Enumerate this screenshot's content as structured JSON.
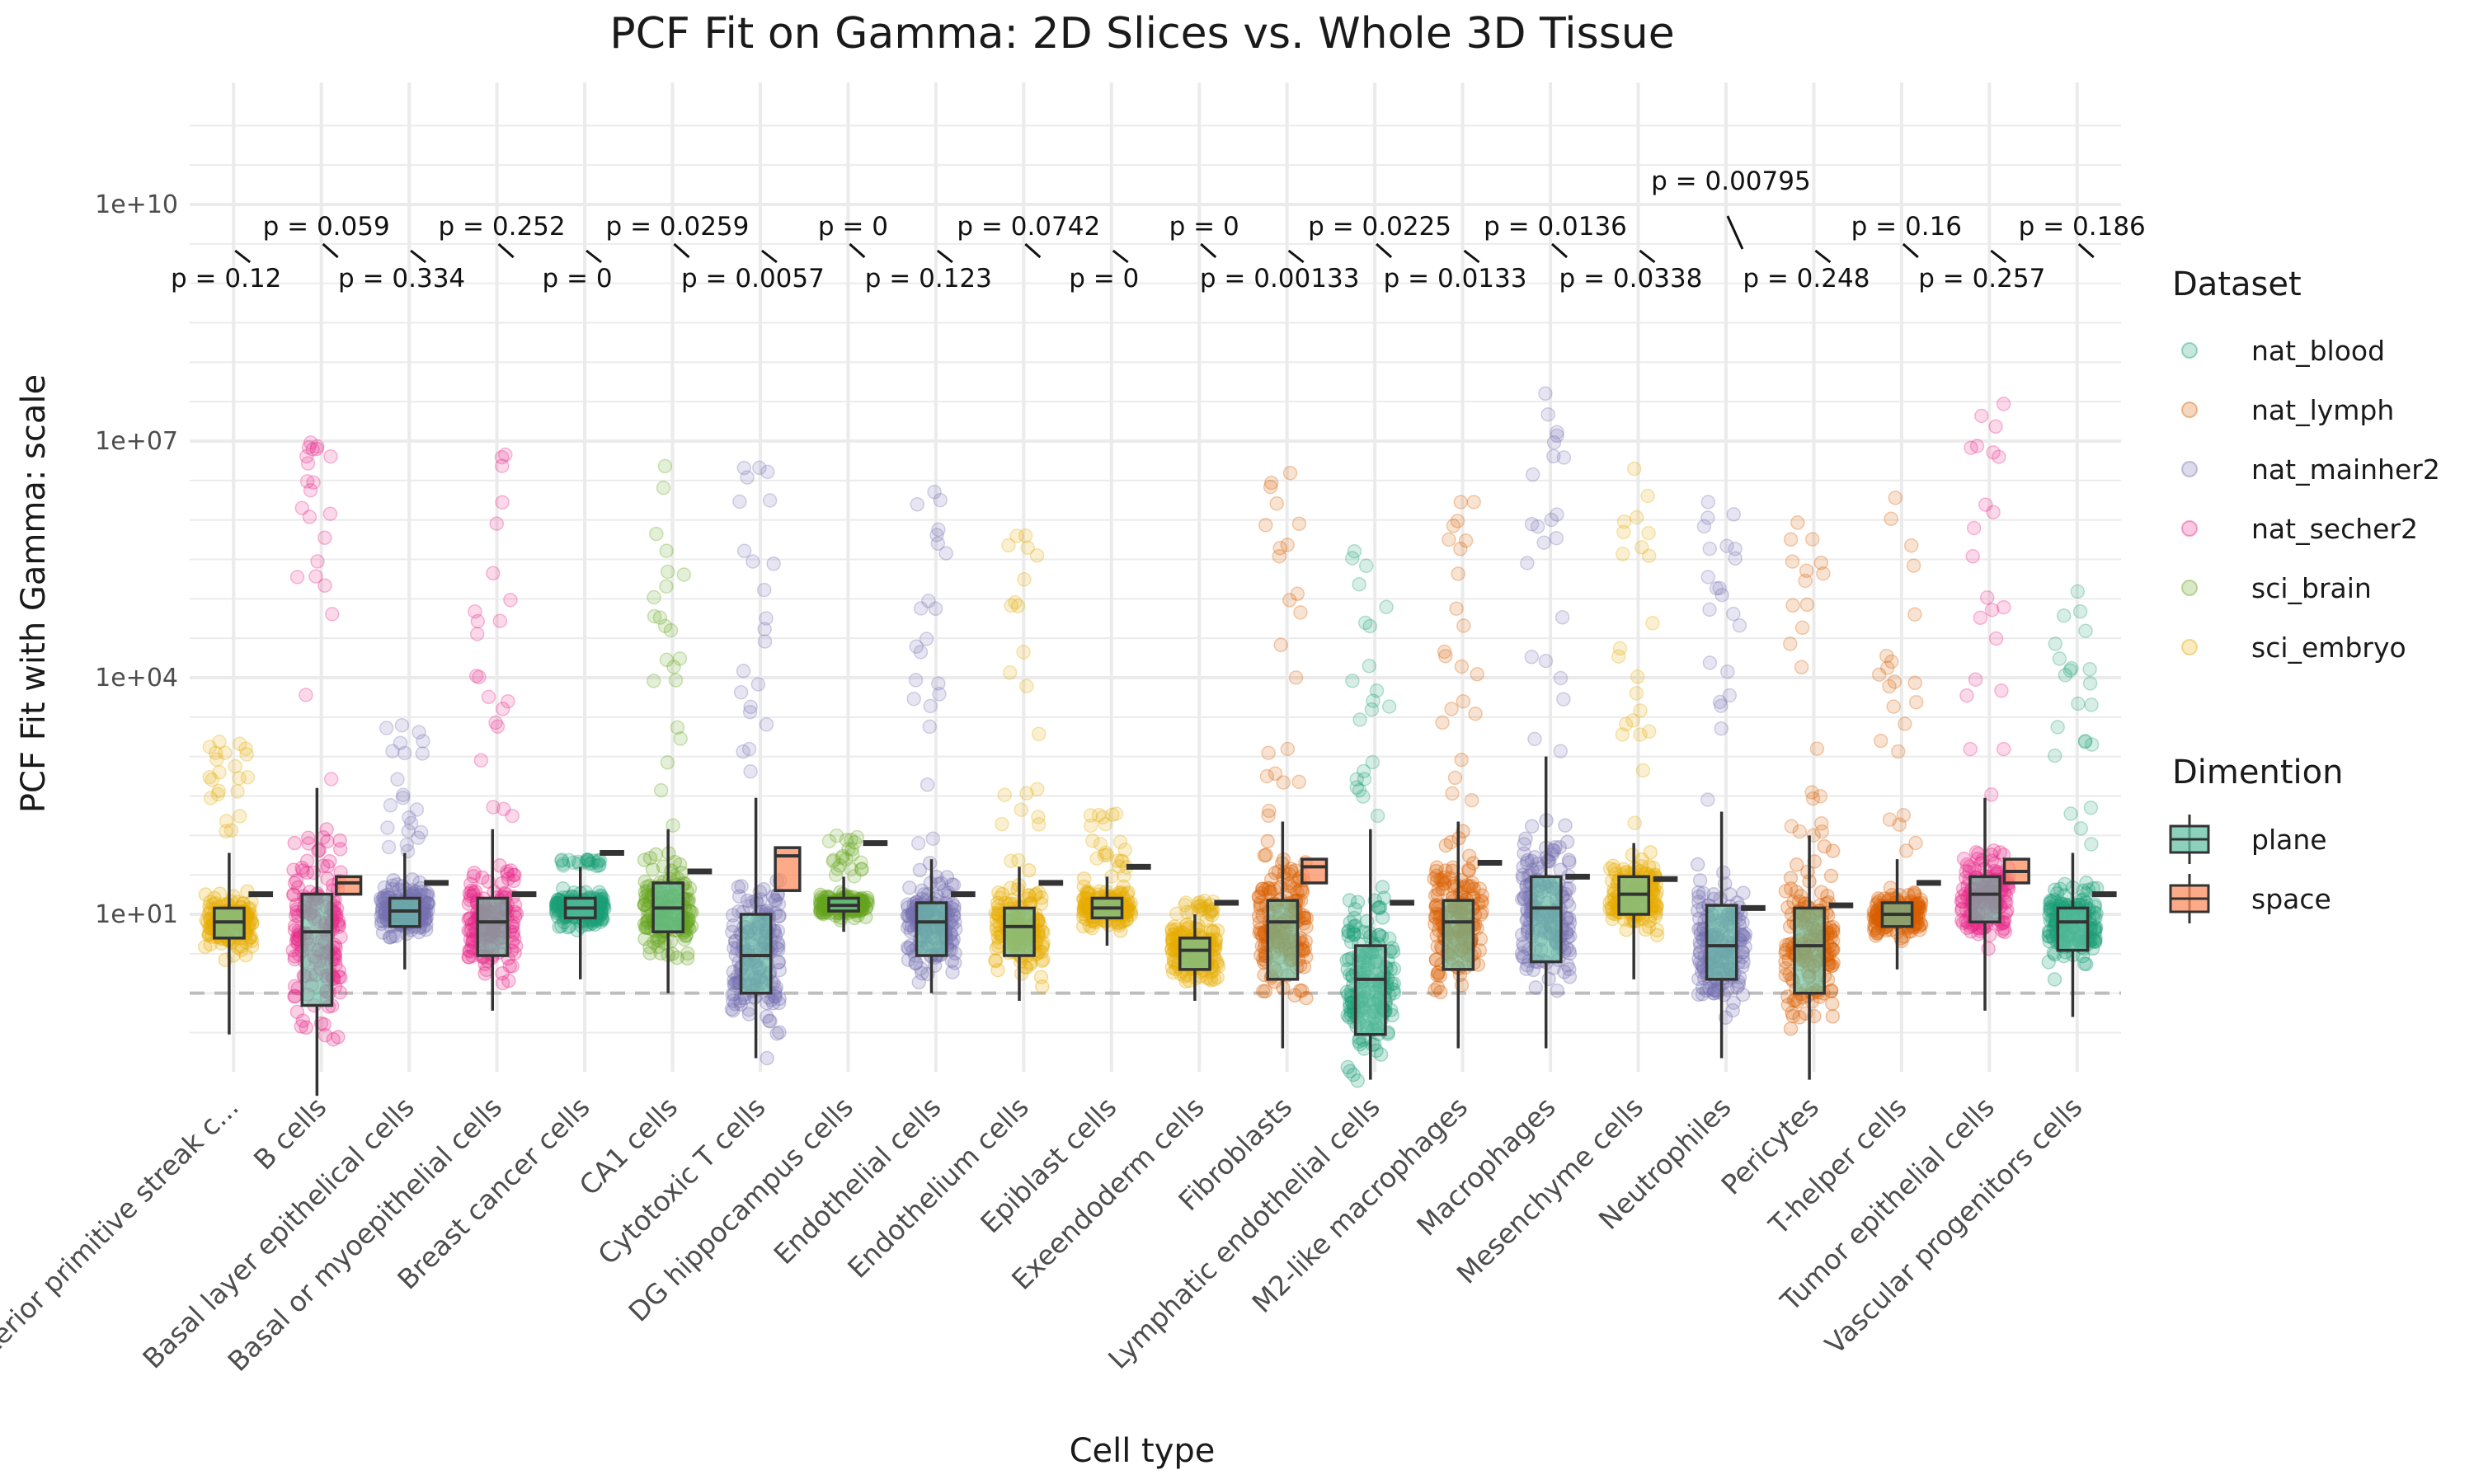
{
  "chart_data": {
    "type": "box",
    "title": "PCF Fit on Gamma: 2D Slices vs. Whole 3D Tissue",
    "xlabel": "Cell type",
    "ylabel": "PCF Fit with Gamma: scale",
    "y_scale": "log10",
    "y_ticks": [
      "1e+01",
      "1e+04",
      "1e+07",
      "1e+10"
    ],
    "ylim": [
      0.02,
      1000000000000
    ],
    "reference_line": 1,
    "grid": true,
    "legend_position": "right",
    "categories": [
      "Anterior primitive streak c...",
      "B cells",
      "Basal layer epithelical cells",
      "Basal or myoepithelial cells",
      "Breast cancer cells",
      "CA1 cells",
      "Cytotoxic T cells",
      "DG hippocampus cells",
      "Endothelial cells",
      "Endothelium cells",
      "Epiblast cells",
      "Exeendoderm cells",
      "Fibroblasts",
      "Lymphatic endothelial cells",
      "M2-like macrophages",
      "Macrophages",
      "Mesenchyme cells",
      "Neutrophiles",
      "Pericytes",
      "T-helper cells",
      "Tumor epithelial cells",
      "Vascular progenitors cells"
    ],
    "dataset_legend": {
      "title": "Dataset",
      "items": [
        {
          "name": "nat_blood",
          "color": "#1B9E77"
        },
        {
          "name": "nat_lymph",
          "color": "#D95F02"
        },
        {
          "name": "nat_mainher2",
          "color": "#7570B3"
        },
        {
          "name": "nat_secher2",
          "color": "#E7298A"
        },
        {
          "name": "sci_brain",
          "color": "#66A61E"
        },
        {
          "name": "sci_embryo",
          "color": "#E6AB02"
        }
      ]
    },
    "dimension_legend": {
      "title": "Dimention",
      "items": [
        {
          "name": "plane",
          "color": "#66C2A5"
        },
        {
          "name": "space",
          "color": "#FC8D62"
        }
      ]
    },
    "groups": [
      {
        "dataset": "sci_embryo",
        "plane": {
          "q1": 5,
          "med": 8,
          "q3": 12,
          "lo": 0.3,
          "hi": 60
        },
        "space_median": 18,
        "pts_range": [
          0.2,
          2000
        ],
        "p": "p = 0.12"
      },
      {
        "dataset": "nat_secher2",
        "plane": {
          "q1": 0.7,
          "med": 6,
          "q3": 18,
          "lo": 0.05,
          "hi": 400
        },
        "space": {
          "q1": 18,
          "med": 25,
          "q3": 30
        },
        "pts_range": [
          0.05,
          10000000
        ],
        "p": "p = 0.059"
      },
      {
        "dataset": "nat_mainher2",
        "plane": {
          "q1": 7,
          "med": 11,
          "q3": 16,
          "lo": 2,
          "hi": 60
        },
        "space_median": 25,
        "pts_range": [
          0.1,
          3000
        ],
        "p": "p = 0.334"
      },
      {
        "dataset": "nat_secher2",
        "plane": {
          "q1": 3,
          "med": 8,
          "q3": 16,
          "lo": 0.6,
          "hi": 120
        },
        "space_median": 18,
        "pts_range": [
          0.1,
          10000000
        ],
        "p": "p = 0.252"
      },
      {
        "dataset": "nat_blood",
        "plane": {
          "q1": 9,
          "med": 12,
          "q3": 16,
          "lo": 1.5,
          "hi": 40
        },
        "space_median": 60,
        "pts_range": [
          0.2,
          50
        ],
        "p": "p = 0"
      },
      {
        "dataset": "sci_brain",
        "plane": {
          "q1": 6,
          "med": 12,
          "q3": 25,
          "lo": 1,
          "hi": 120
        },
        "space_median": 35,
        "pts_range": [
          0.3,
          10000000
        ],
        "p": "p = 0.0259"
      },
      {
        "dataset": "nat_mainher2",
        "plane": {
          "q1": 1,
          "med": 3,
          "q3": 10,
          "lo": 0.15,
          "hi": 300
        },
        "space": {
          "q1": 20,
          "med": 55,
          "q3": 70
        },
        "pts_range": [
          0.15,
          5000000
        ],
        "p": "p = 0.0057"
      },
      {
        "dataset": "sci_brain",
        "plane": {
          "q1": 11,
          "med": 13,
          "q3": 16,
          "lo": 6,
          "hi": 30
        },
        "space_median": 80,
        "pts_range": [
          5,
          100
        ],
        "p": "p = 0"
      },
      {
        "dataset": "nat_mainher2",
        "plane": {
          "q1": 3,
          "med": 8,
          "q3": 14,
          "lo": 1,
          "hi": 50
        },
        "space_median": 18,
        "pts_range": [
          0.5,
          3000000
        ],
        "p": "p = 0.123"
      },
      {
        "dataset": "sci_embryo",
        "plane": {
          "q1": 3,
          "med": 7,
          "q3": 12,
          "lo": 0.8,
          "hi": 40
        },
        "space_median": 25,
        "pts_range": [
          0.5,
          1000000
        ],
        "p": "p = 0.0742"
      },
      {
        "dataset": "sci_embryo",
        "plane": {
          "q1": 9,
          "med": 12,
          "q3": 16,
          "lo": 4,
          "hi": 30
        },
        "space_median": 40,
        "pts_range": [
          3,
          200
        ],
        "p": "p = 0"
      },
      {
        "dataset": "sci_embryo",
        "plane": {
          "q1": 2,
          "med": 3.5,
          "q3": 5,
          "lo": 0.8,
          "hi": 10
        },
        "space_median": 14,
        "pts_range": [
          0.5,
          15
        ],
        "p": "p = 0"
      },
      {
        "dataset": "nat_lymph",
        "plane": {
          "q1": 1.5,
          "med": 8,
          "q3": 15,
          "lo": 0.2,
          "hi": 150
        },
        "space": {
          "q1": 25,
          "med": 40,
          "q3": 50
        },
        "pts_range": [
          0.05,
          4000000
        ],
        "p": "p = 0.00133"
      },
      {
        "dataset": "nat_blood",
        "plane": {
          "q1": 0.3,
          "med": 1.5,
          "q3": 4,
          "lo": 0.08,
          "hi": 120
        },
        "space_median": 14,
        "pts_range": [
          0.05,
          500000
        ],
        "p": "p = 0.0225"
      },
      {
        "dataset": "nat_lymph",
        "plane": {
          "q1": 2,
          "med": 8,
          "q3": 15,
          "lo": 0.2,
          "hi": 150
        },
        "space_median": 45,
        "pts_range": [
          0.2,
          2000000
        ],
        "p": "p = 0.0133"
      },
      {
        "dataset": "nat_mainher2",
        "plane": {
          "q1": 2.5,
          "med": 12,
          "q3": 30,
          "lo": 0.2,
          "hi": 1000
        },
        "space_median": 30,
        "pts_range": [
          0.2,
          60000000
        ],
        "p": "p = 0.0136"
      },
      {
        "dataset": "sci_embryo",
        "plane": {
          "q1": 10,
          "med": 18,
          "q3": 30,
          "lo": 1.5,
          "hi": 80
        },
        "space_median": 28,
        "pts_range": [
          0.3,
          5000000
        ],
        "p": "p = 0.0338"
      },
      {
        "dataset": "nat_mainher2",
        "plane": {
          "q1": 1.5,
          "med": 4,
          "q3": 13,
          "lo": 0.15,
          "hi": 200
        },
        "space_median": 12,
        "pts_range": [
          0.1,
          10000000
        ],
        "p": "p = 0.00795"
      },
      {
        "dataset": "nat_lymph",
        "plane": {
          "q1": 1,
          "med": 4,
          "q3": 12,
          "lo": 0.08,
          "hi": 100
        },
        "space_median": 13,
        "pts_range": [
          0.1,
          1000000
        ],
        "p": "p = 0.248"
      },
      {
        "dataset": "nat_lymph",
        "plane": {
          "q1": 7,
          "med": 10,
          "q3": 14,
          "lo": 2,
          "hi": 50
        },
        "space_median": 25,
        "pts_range": [
          0.5,
          4000000
        ],
        "p": "p = 0.16"
      },
      {
        "dataset": "nat_secher2",
        "plane": {
          "q1": 8,
          "med": 18,
          "q3": 30,
          "lo": 0.6,
          "hi": 300
        },
        "space": {
          "q1": 25,
          "med": 35,
          "q3": 50
        },
        "pts_range": [
          0.2,
          30000000
        ],
        "p": "p = 0.257"
      },
      {
        "dataset": "nat_blood",
        "plane": {
          "q1": 3.5,
          "med": 8,
          "q3": 12,
          "lo": 0.5,
          "hi": 60
        },
        "space_median": 18,
        "pts_range": [
          0.3,
          500000
        ],
        "p": "p = 0.186"
      }
    ]
  }
}
